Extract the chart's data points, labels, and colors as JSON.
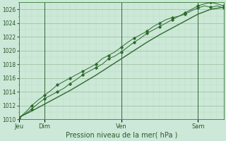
{
  "xlabel": "Pression niveau de la mer( hPa )",
  "bg_color": "#cce8d8",
  "grid_major_color": "#99bb99",
  "grid_minor_color": "#bbddbb",
  "line_color": "#2d6b2d",
  "vline_color": "#336633",
  "ylim": [
    1010,
    1027
  ],
  "yticks": [
    1010,
    1012,
    1014,
    1016,
    1018,
    1020,
    1022,
    1024,
    1026
  ],
  "xlim": [
    0,
    96
  ],
  "x_tick_positions": [
    0,
    12,
    48,
    84
  ],
  "x_tick_labels": [
    "Jeu",
    "Dim",
    "Ven",
    "Sam"
  ],
  "vline_positions": [
    12,
    48,
    84
  ],
  "smooth_line_x": [
    0,
    6,
    12,
    18,
    24,
    30,
    36,
    42,
    48,
    54,
    60,
    66,
    72,
    78,
    84,
    90,
    96
  ],
  "smooth_line_y": [
    1010.3,
    1011.2,
    1012.2,
    1013.2,
    1014.2,
    1015.3,
    1016.4,
    1017.6,
    1018.8,
    1020.0,
    1021.2,
    1022.3,
    1023.3,
    1024.3,
    1025.3,
    1026.0,
    1026.3
  ],
  "line1_x": [
    0,
    3,
    6,
    9,
    12,
    15,
    18,
    21,
    24,
    27,
    30,
    33,
    36,
    39,
    42,
    45,
    48,
    51,
    54,
    57,
    60,
    63,
    66,
    69,
    72,
    75,
    78,
    81,
    84,
    87,
    90,
    93,
    96
  ],
  "line1_y": [
    1010.2,
    1010.8,
    1011.5,
    1012.3,
    1013.0,
    1013.5,
    1014.0,
    1014.5,
    1015.2,
    1015.8,
    1016.5,
    1017.0,
    1017.5,
    1018.0,
    1018.8,
    1019.2,
    1019.8,
    1020.5,
    1021.2,
    1021.8,
    1022.5,
    1023.0,
    1023.5,
    1024.0,
    1024.5,
    1025.0,
    1025.5,
    1026.0,
    1026.5,
    1026.8,
    1027.0,
    1026.8,
    1026.5
  ],
  "line2_x": [
    0,
    3,
    6,
    9,
    12,
    15,
    18,
    21,
    24,
    27,
    30,
    33,
    36,
    39,
    42,
    45,
    48,
    51,
    54,
    57,
    60,
    63,
    66,
    69,
    72,
    75,
    78,
    81,
    84,
    87,
    90,
    93,
    96
  ],
  "line2_y": [
    1010.2,
    1011.0,
    1012.0,
    1012.8,
    1013.5,
    1014.2,
    1015.0,
    1015.5,
    1016.0,
    1016.5,
    1017.0,
    1017.5,
    1018.0,
    1018.8,
    1019.3,
    1019.8,
    1020.5,
    1021.2,
    1021.8,
    1022.3,
    1022.8,
    1023.5,
    1024.0,
    1024.5,
    1024.8,
    1025.0,
    1025.3,
    1025.8,
    1026.2,
    1026.5,
    1026.3,
    1026.5,
    1026.2
  ]
}
